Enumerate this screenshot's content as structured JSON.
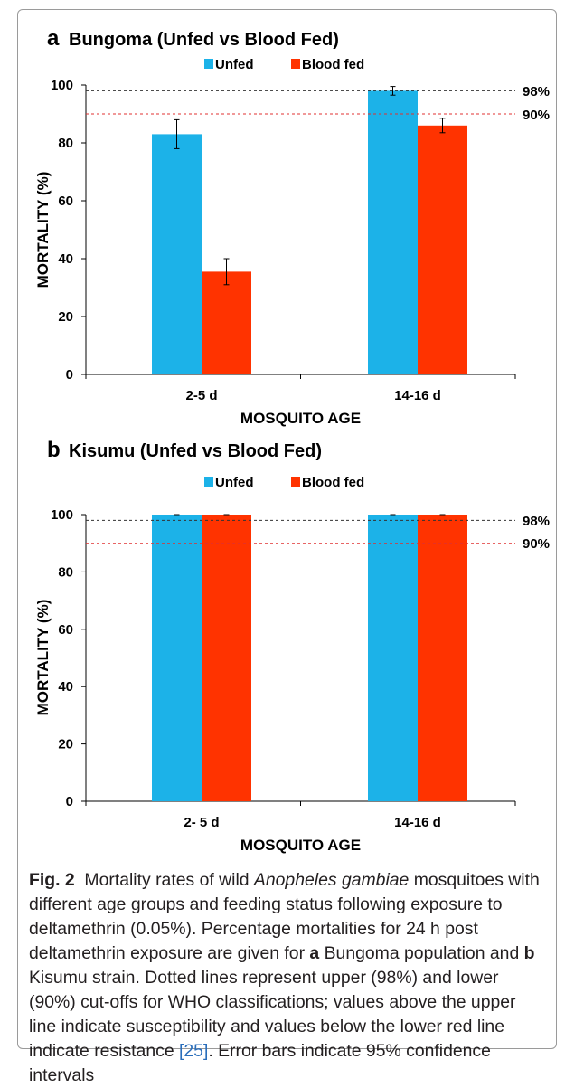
{
  "chart_data": [
    {
      "panel": "a",
      "title": "Bungoma (Unfed vs Blood Fed)",
      "type": "bar",
      "categories": [
        "2-5 d",
        "14-16 d"
      ],
      "series": [
        {
          "name": "Unfed",
          "color": "#1cb2e8",
          "values": [
            83,
            98
          ],
          "err": [
            5,
            1.5
          ]
        },
        {
          "name": "Blood fed",
          "color": "#ff3300",
          "values": [
            35.5,
            86
          ],
          "err": [
            4.5,
            2.5
          ]
        }
      ],
      "xlabel": "MOSQUITO AGE",
      "ylabel": "MORTALITY (%)",
      "ylim": [
        0,
        100
      ],
      "yticks": [
        "0",
        "20",
        "40",
        "60",
        "80",
        "100"
      ],
      "reference_lines": [
        {
          "value": 98,
          "label": "98%",
          "color": "#333333"
        },
        {
          "value": 90,
          "label": "90%",
          "color": "#e03030"
        }
      ],
      "legend": "top"
    },
    {
      "panel": "b",
      "title": "Kisumu (Unfed vs Blood Fed)",
      "type": "bar",
      "categories": [
        "2- 5 d",
        "14-16 d"
      ],
      "series": [
        {
          "name": "Unfed",
          "color": "#1cb2e8",
          "values": [
            100,
            100
          ],
          "err": [
            0,
            0
          ]
        },
        {
          "name": "Blood fed",
          "color": "#ff3300",
          "values": [
            100,
            100
          ],
          "err": [
            0,
            0
          ]
        }
      ],
      "xlabel": "MOSQUITO AGE",
      "ylabel": "MORTALITY (%)",
      "ylim": [
        0,
        100
      ],
      "yticks": [
        "0",
        "20",
        "40",
        "60",
        "80",
        "100"
      ],
      "reference_lines": [
        {
          "value": 98,
          "label": "98%",
          "color": "#333333"
        },
        {
          "value": 90,
          "label": "90%",
          "color": "#e03030"
        }
      ],
      "legend": "top"
    }
  ],
  "caption": {
    "fig_label": "Fig. 2",
    "t1": "Mortality rates of wild ",
    "species": "Anopheles gambiae",
    "t2": " mosquitoes with different age groups and feeding status following exposure to deltamethrin (0.05%). Percentage mortalities for 24 h post deltamethrin exposure are given for ",
    "panel_a": "a",
    "t3": " Bungoma population and ",
    "panel_b": "b",
    "t4": " Kisumu strain. Dotted lines represent upper (98%) and lower (90%) cut-offs for WHO classifications; values above the upper line indicate susceptibility and values below the lower red line indicate resistance ",
    "ref": "[25]",
    "t5": ". Error bars indicate 95% confidence intervals"
  }
}
